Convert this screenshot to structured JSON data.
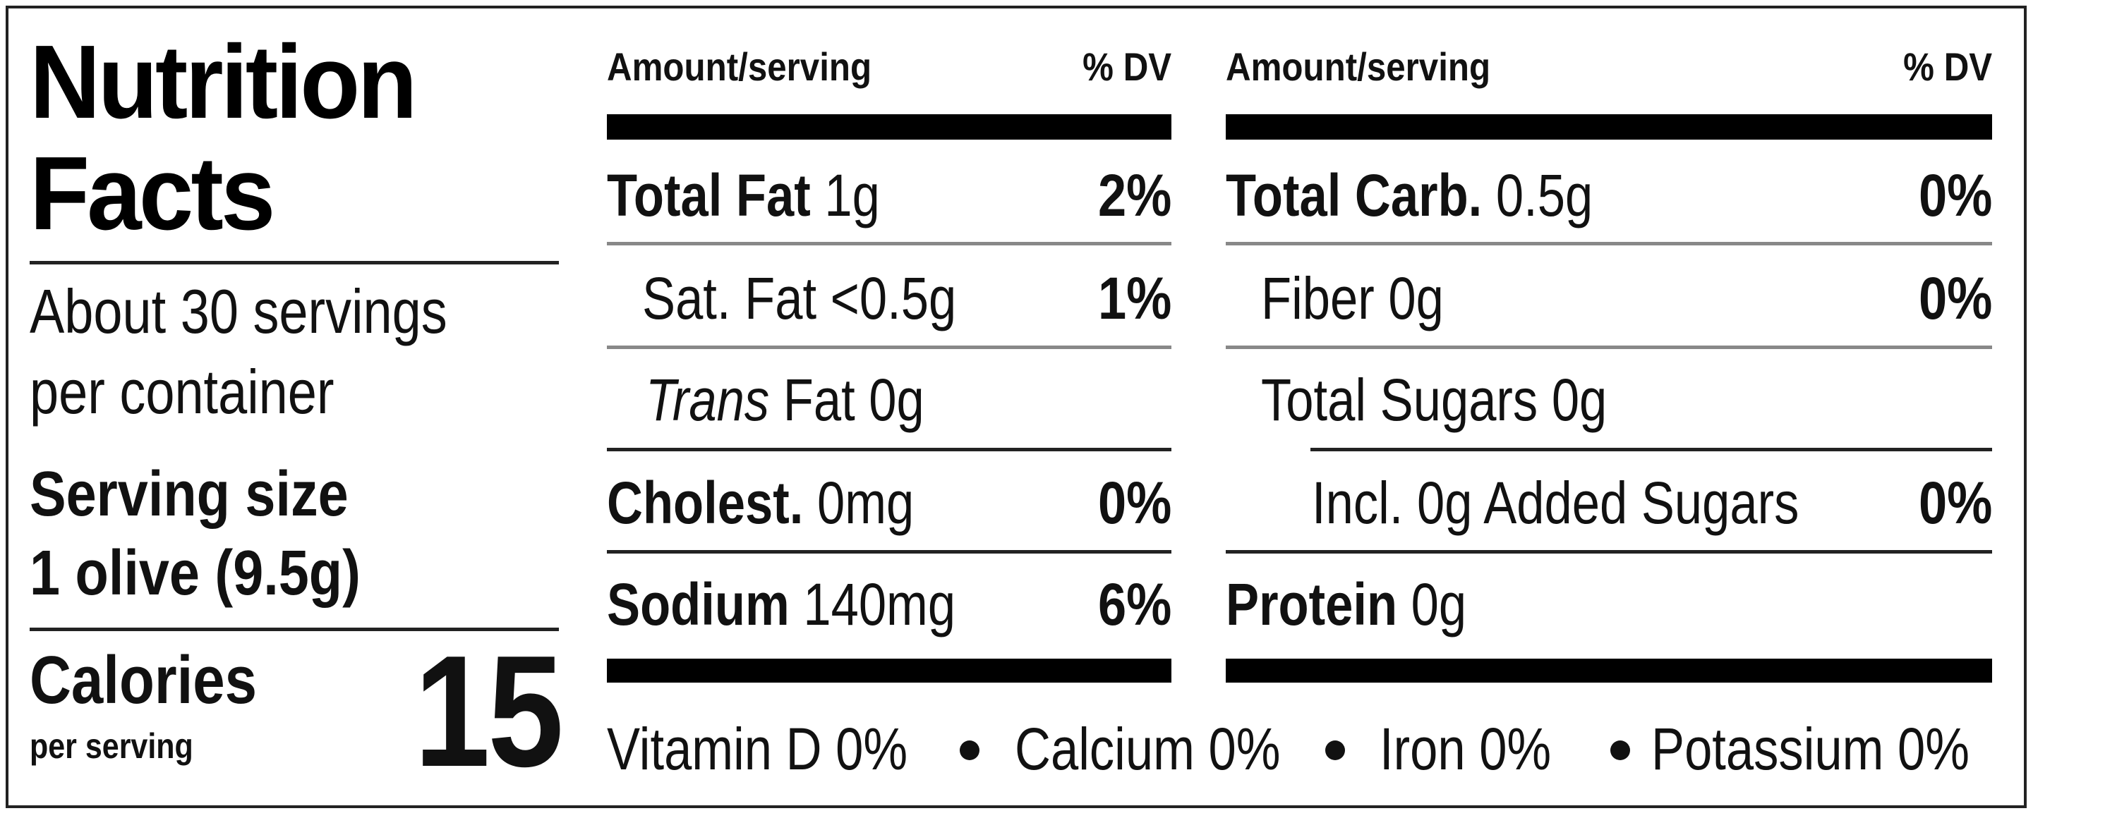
{
  "title": [
    "Nutrition",
    "Facts"
  ],
  "servings_per_container": [
    "About 30 servings",
    "per container"
  ],
  "serving_size": {
    "label": "Serving size",
    "value": "1 olive (9.5g)"
  },
  "calories": {
    "label": "Calories",
    "sub": "per serving",
    "value": "15"
  },
  "header": {
    "amount": "Amount/serving",
    "dv": "% DV"
  },
  "left_nutrients": [
    {
      "name": "Total Fat",
      "amount": "1g",
      "dv": "2%"
    },
    {
      "name": "Sat. Fat <0.5g",
      "dv": "1%"
    },
    {
      "name_italic": "Trans",
      "name": " Fat 0g"
    },
    {
      "name": "Cholest.",
      "amount": "0mg",
      "dv": "0%"
    },
    {
      "name": "Sodium",
      "amount": "140mg",
      "dv": "6%"
    }
  ],
  "right_nutrients": [
    {
      "name": "Total Carb.",
      "amount": "0.5g",
      "dv": "0%"
    },
    {
      "name": "Fiber 0g",
      "dv": "0%"
    },
    {
      "name": "Total Sugars 0g"
    },
    {
      "name": "Incl. 0g Added Sugars",
      "dv": "0%"
    },
    {
      "name": "Protein",
      "amount": "0g"
    }
  ],
  "vitamins": [
    "Vitamin D  0%",
    "Calcium  0%",
    "Iron  0%",
    "Potassium  0%"
  ]
}
